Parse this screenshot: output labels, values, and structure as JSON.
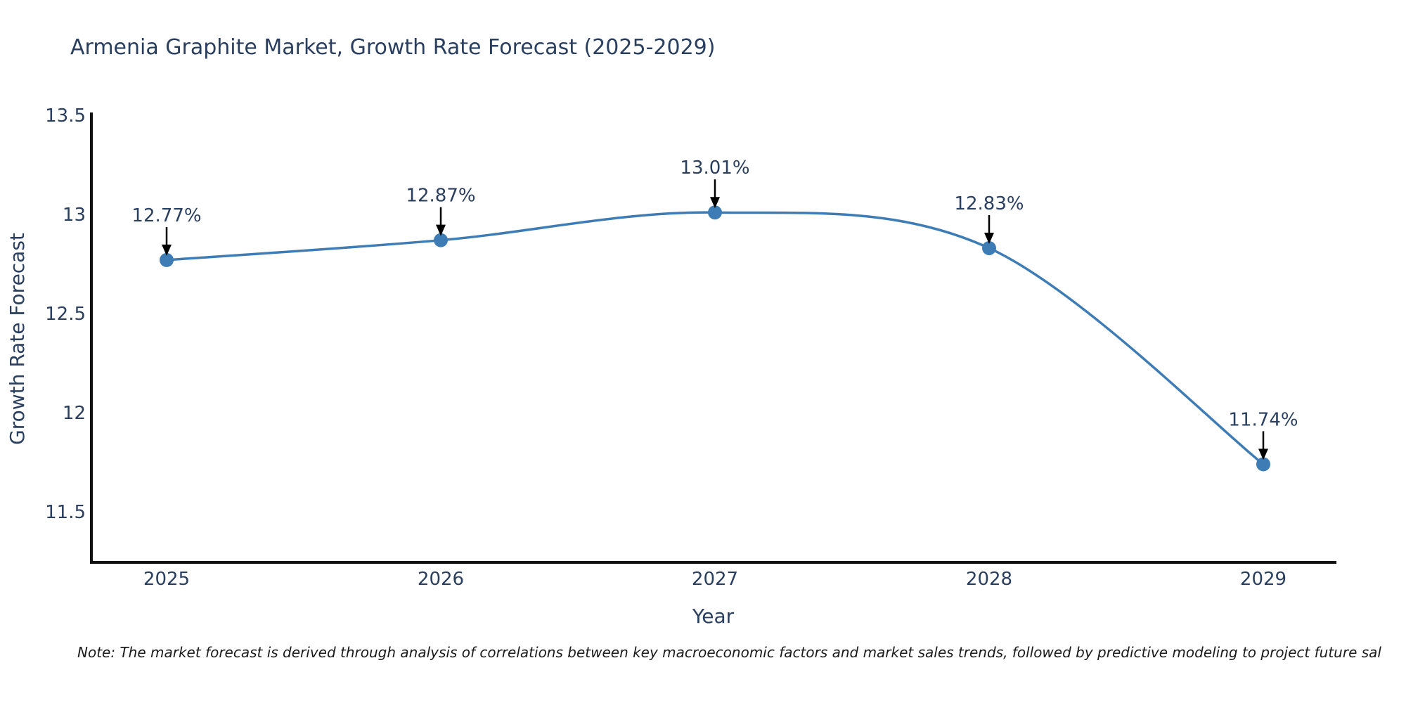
{
  "title": "Armenia Graphite Market, Growth Rate Forecast (2025-2029)",
  "note": "Note: The market forecast is derived through analysis of correlations between key macroeconomic factors and market sales trends, followed by predictive modeling to project future sal",
  "chart_data": {
    "type": "line",
    "title": "Armenia Graphite Market, Growth Rate Forecast (2025-2029)",
    "xlabel": "Year",
    "ylabel": "Growth Rate Forecast",
    "categories": [
      "2025",
      "2026",
      "2027",
      "2028",
      "2029"
    ],
    "values": [
      12.77,
      12.87,
      13.01,
      12.83,
      11.74
    ],
    "point_labels": [
      "12.77%",
      "12.87%",
      "13.01%",
      "12.83%",
      "11.74%"
    ],
    "yticks": [
      13.5,
      13,
      12.5,
      12,
      11.5
    ],
    "ylim": [
      11.245,
      13.5
    ],
    "grid": false,
    "legend": "none",
    "line_shape": "spline",
    "line_color": "#3e7cb6",
    "marker_color": "#3e7cb6",
    "axis_color": "#111111",
    "text_color": "#2a3f5f",
    "annotation_color": "#000000"
  }
}
